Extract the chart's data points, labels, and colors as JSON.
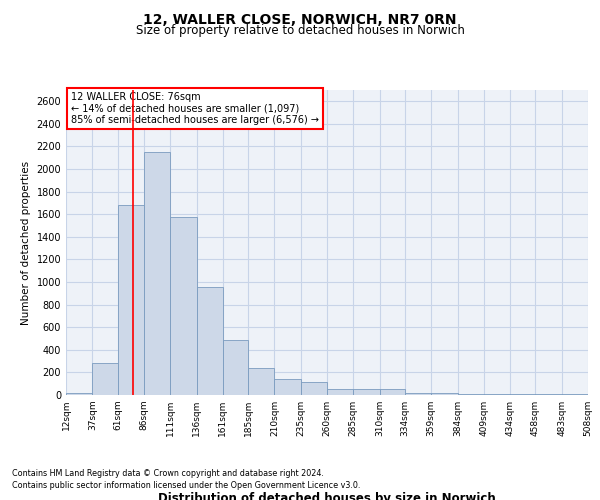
{
  "title1": "12, WALLER CLOSE, NORWICH, NR7 0RN",
  "title2": "Size of property relative to detached houses in Norwich",
  "xlabel": "Distribution of detached houses by size in Norwich",
  "ylabel": "Number of detached properties",
  "footnote1": "Contains HM Land Registry data © Crown copyright and database right 2024.",
  "footnote2": "Contains public sector information licensed under the Open Government Licence v3.0.",
  "bar_color": "#cdd8e8",
  "bar_edge_color": "#7a9bbf",
  "grid_color": "#c8d4e8",
  "bg_color": "#eef2f8",
  "property_line_x": 76,
  "annotation_text": "12 WALLER CLOSE: 76sqm\n← 14% of detached houses are smaller (1,097)\n85% of semi-detached houses are larger (6,576) →",
  "bin_edges": [
    12,
    37,
    61,
    86,
    111,
    136,
    161,
    185,
    210,
    235,
    260,
    285,
    310,
    334,
    359,
    384,
    409,
    434,
    458,
    483,
    508
  ],
  "bin_counts": [
    20,
    280,
    1680,
    2150,
    1580,
    960,
    490,
    240,
    140,
    115,
    55,
    55,
    50,
    20,
    20,
    10,
    5,
    5,
    10,
    5
  ],
  "ylim": [
    0,
    2700
  ],
  "yticks": [
    0,
    200,
    400,
    600,
    800,
    1000,
    1200,
    1400,
    1600,
    1800,
    2000,
    2200,
    2400,
    2600
  ]
}
